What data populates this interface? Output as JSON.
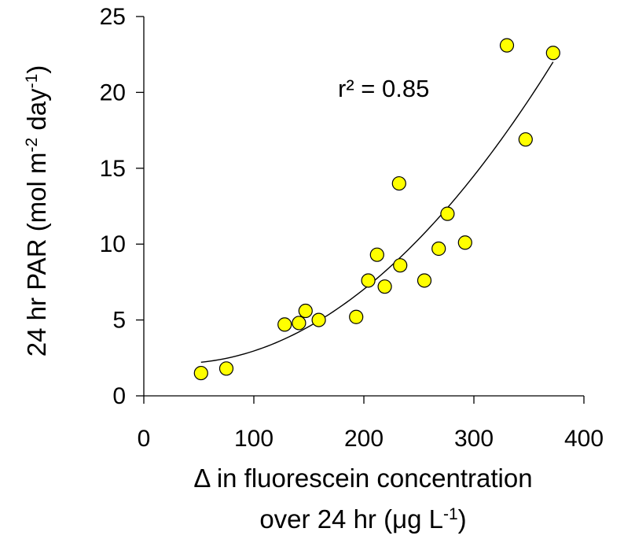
{
  "chart_data": {
    "type": "scatter",
    "x_axis": {
      "label_line1": "Δ in fluorescein concentration",
      "label_line2_prefix": "over 24 hr (μg L",
      "label_line2_sup": "-1",
      "label_line2_suffix": ")",
      "ticks": [
        0,
        100,
        200,
        300,
        400
      ],
      "range": [
        0,
        400
      ]
    },
    "y_axis": {
      "label_prefix": "24 hr PAR (mol m",
      "label_sup1": "-2",
      "label_mid": " day",
      "label_sup2": "-1",
      "label_suffix": ")",
      "ticks": [
        0,
        5,
        10,
        15,
        20,
        25
      ],
      "range": [
        0,
        25
      ]
    },
    "annotation": "r² = 0.85",
    "marker_color": "#ffff00",
    "marker_edge_color": "#000000",
    "fit_line_color": "#000000",
    "fit_range": [
      52,
      372
    ],
    "points": [
      {
        "x": 52,
        "y": 1.5
      },
      {
        "x": 75,
        "y": 1.8
      },
      {
        "x": 128,
        "y": 4.7
      },
      {
        "x": 141,
        "y": 4.8
      },
      {
        "x": 147,
        "y": 5.6
      },
      {
        "x": 159,
        "y": 5.0
      },
      {
        "x": 193,
        "y": 5.2
      },
      {
        "x": 204,
        "y": 7.6
      },
      {
        "x": 212,
        "y": 9.3
      },
      {
        "x": 219,
        "y": 7.2
      },
      {
        "x": 233,
        "y": 8.6
      },
      {
        "x": 232,
        "y": 14.0
      },
      {
        "x": 255,
        "y": 7.6
      },
      {
        "x": 268,
        "y": 9.7
      },
      {
        "x": 276,
        "y": 12.0
      },
      {
        "x": 292,
        "y": 10.1
      },
      {
        "x": 330,
        "y": 23.1
      },
      {
        "x": 347,
        "y": 16.9
      },
      {
        "x": 372,
        "y": 22.6
      }
    ],
    "grid": false,
    "legend": false
  }
}
